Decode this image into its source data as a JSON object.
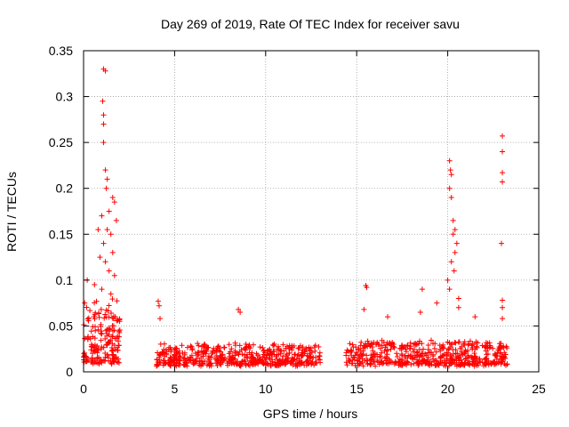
{
  "chart_data": {
    "type": "scatter",
    "title": "Day 269 of 2019, Rate Of TEC Index for receiver savu",
    "xlabel": "GPS time / hours",
    "ylabel": "ROTI / TECUs",
    "xlim": [
      0,
      25
    ],
    "ylim": [
      0,
      0.35
    ],
    "xticks": [
      0,
      5,
      10,
      15,
      20,
      25
    ],
    "xtick_labels": [
      "0",
      "5",
      "10",
      "15",
      "20",
      "25"
    ],
    "yticks": [
      0,
      0.05,
      0.1,
      0.15,
      0.2,
      0.25,
      0.3,
      0.35
    ],
    "ytick_labels": [
      "0",
      "0.05",
      "0.1",
      "0.15",
      "0.2",
      "0.25",
      "0.3",
      "0.35"
    ],
    "grid": true,
    "marker": "+",
    "color": "#ff0000",
    "clusters": [
      {
        "x_start": 0.0,
        "x_end": 2.0,
        "y_base": 0.01,
        "y_spread": 0.07,
        "n": 180
      },
      {
        "x_start": 4.0,
        "x_end": 13.0,
        "y_base": 0.008,
        "y_spread": 0.022,
        "n": 520
      },
      {
        "x_start": 14.4,
        "x_end": 23.3,
        "y_base": 0.008,
        "y_spread": 0.025,
        "n": 520
      }
    ],
    "outliers": [
      {
        "x": 1.1,
        "y": 0.33
      },
      {
        "x": 1.2,
        "y": 0.328
      },
      {
        "x": 1.05,
        "y": 0.295
      },
      {
        "x": 1.1,
        "y": 0.28
      },
      {
        "x": 1.1,
        "y": 0.27
      },
      {
        "x": 1.1,
        "y": 0.25
      },
      {
        "x": 1.2,
        "y": 0.22
      },
      {
        "x": 1.3,
        "y": 0.21
      },
      {
        "x": 1.25,
        "y": 0.2
      },
      {
        "x": 1.6,
        "y": 0.19
      },
      {
        "x": 1.7,
        "y": 0.185
      },
      {
        "x": 1.4,
        "y": 0.175
      },
      {
        "x": 1.0,
        "y": 0.17
      },
      {
        "x": 1.8,
        "y": 0.165
      },
      {
        "x": 1.3,
        "y": 0.155
      },
      {
        "x": 1.5,
        "y": 0.15
      },
      {
        "x": 0.8,
        "y": 0.155
      },
      {
        "x": 1.1,
        "y": 0.14
      },
      {
        "x": 1.6,
        "y": 0.13
      },
      {
        "x": 0.9,
        "y": 0.125
      },
      {
        "x": 1.2,
        "y": 0.12
      },
      {
        "x": 1.4,
        "y": 0.11
      },
      {
        "x": 0.2,
        "y": 0.1
      },
      {
        "x": 1.7,
        "y": 0.105
      },
      {
        "x": 0.6,
        "y": 0.095
      },
      {
        "x": 1.0,
        "y": 0.09
      },
      {
        "x": 1.5,
        "y": 0.085
      },
      {
        "x": 4.1,
        "y": 0.077
      },
      {
        "x": 4.15,
        "y": 0.072
      },
      {
        "x": 4.2,
        "y": 0.058
      },
      {
        "x": 8.5,
        "y": 0.068
      },
      {
        "x": 8.6,
        "y": 0.065
      },
      {
        "x": 15.5,
        "y": 0.094
      },
      {
        "x": 15.55,
        "y": 0.092
      },
      {
        "x": 15.4,
        "y": 0.068
      },
      {
        "x": 16.7,
        "y": 0.06
      },
      {
        "x": 18.6,
        "y": 0.09
      },
      {
        "x": 18.5,
        "y": 0.065
      },
      {
        "x": 20.1,
        "y": 0.23
      },
      {
        "x": 20.15,
        "y": 0.22
      },
      {
        "x": 20.2,
        "y": 0.215
      },
      {
        "x": 20.1,
        "y": 0.2
      },
      {
        "x": 20.2,
        "y": 0.19
      },
      {
        "x": 20.3,
        "y": 0.165
      },
      {
        "x": 20.4,
        "y": 0.155
      },
      {
        "x": 20.3,
        "y": 0.15
      },
      {
        "x": 20.5,
        "y": 0.14
      },
      {
        "x": 20.4,
        "y": 0.13
      },
      {
        "x": 20.2,
        "y": 0.12
      },
      {
        "x": 20.35,
        "y": 0.11
      },
      {
        "x": 20.0,
        "y": 0.1
      },
      {
        "x": 20.1,
        "y": 0.09
      },
      {
        "x": 20.6,
        "y": 0.08
      },
      {
        "x": 20.6,
        "y": 0.07
      },
      {
        "x": 19.4,
        "y": 0.075
      },
      {
        "x": 21.5,
        "y": 0.06
      },
      {
        "x": 23.0,
        "y": 0.257
      },
      {
        "x": 23.0,
        "y": 0.24
      },
      {
        "x": 23.0,
        "y": 0.217
      },
      {
        "x": 23.0,
        "y": 0.207
      },
      {
        "x": 22.95,
        "y": 0.14
      },
      {
        "x": 23.0,
        "y": 0.078
      },
      {
        "x": 23.0,
        "y": 0.07
      },
      {
        "x": 23.0,
        "y": 0.058
      }
    ]
  }
}
